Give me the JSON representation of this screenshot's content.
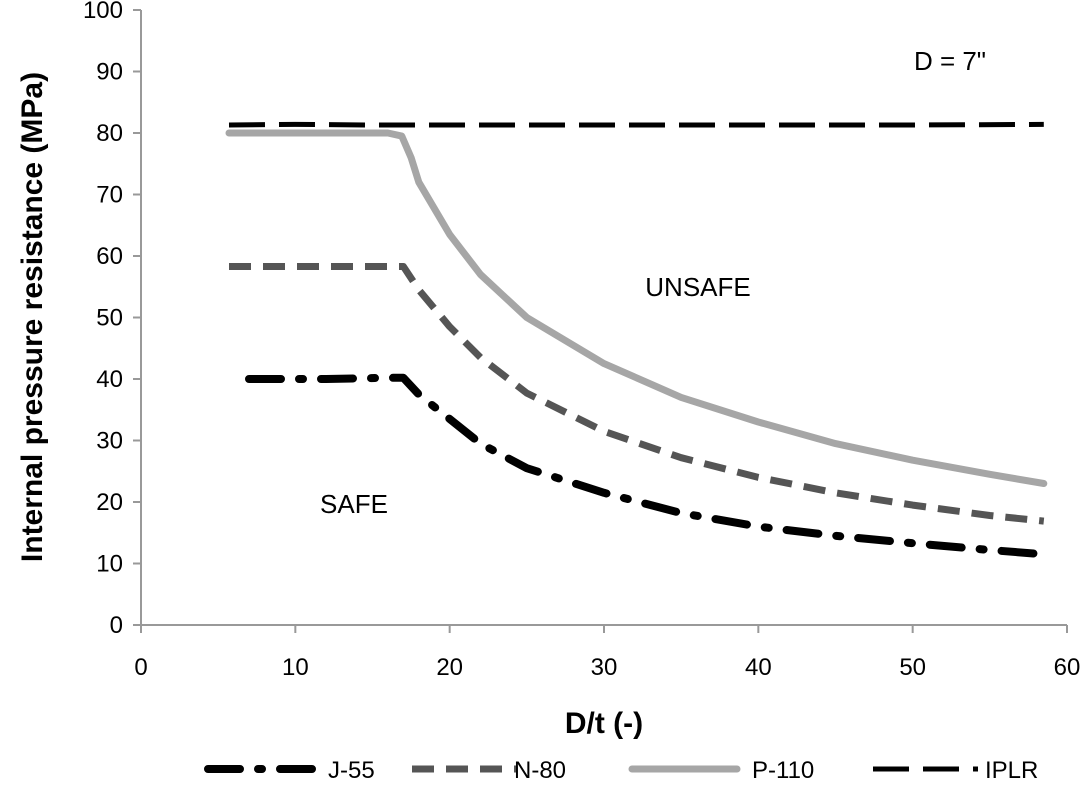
{
  "chart_data": {
    "type": "line",
    "title": "",
    "xlabel": "D/t (-)",
    "ylabel": "Internal pressure resistance (MPa)",
    "xlim": [
      0,
      60
    ],
    "ylim": [
      0,
      100
    ],
    "xticks": [
      0,
      10,
      20,
      30,
      40,
      50,
      60
    ],
    "yticks": [
      0,
      10,
      20,
      30,
      40,
      50,
      60,
      70,
      80,
      90,
      100
    ],
    "grid": false,
    "legend_position": "bottom",
    "annotations": [
      {
        "text": "D = 7\"",
        "x": 50,
        "y": 87
      },
      {
        "text": "UNSAFE",
        "x": 36.5,
        "y": 54
      },
      {
        "text": "SAFE",
        "x": 13.5,
        "y": 19
      }
    ],
    "series": [
      {
        "name": "J-55",
        "color": "#000000",
        "style": "dash-dot",
        "x": [
          7,
          10,
          12,
          14,
          16,
          17,
          18,
          20,
          22,
          25,
          30,
          35,
          40,
          45,
          50,
          55,
          58.5
        ],
        "y": [
          40,
          40,
          40,
          40.1,
          40.2,
          40.2,
          37.5,
          33.5,
          29.5,
          25.5,
          21.5,
          18.2,
          16,
          14.5,
          13.3,
          12.2,
          11.5
        ]
      },
      {
        "name": "N-80",
        "color": "#555555",
        "style": "dash",
        "x": [
          5.7,
          10,
          12,
          14,
          16,
          17,
          18,
          20,
          22,
          25,
          30,
          35,
          40,
          45,
          50,
          55,
          58.5
        ],
        "y": [
          58.3,
          58.3,
          58.3,
          58.3,
          58.3,
          58.3,
          54.5,
          48.5,
          43.5,
          37.7,
          31.5,
          27.2,
          24,
          21.5,
          19.5,
          17.8,
          16.9
        ]
      },
      {
        "name": "P-110",
        "color": "#a6a6a6",
        "style": "solid",
        "x": [
          5.7,
          10,
          12,
          14,
          16,
          16.9,
          17.5,
          18,
          20,
          22,
          25,
          30,
          35,
          40,
          45,
          50,
          55,
          58.5
        ],
        "y": [
          80,
          80,
          80,
          80,
          80,
          79.5,
          76,
          72,
          63.5,
          57,
          50,
          42.5,
          37,
          33,
          29.5,
          26.8,
          24.5,
          23
        ]
      },
      {
        "name": "IPLR",
        "color": "#000000",
        "style": "long-dash",
        "x": [
          5.7,
          10,
          15,
          20,
          30,
          40,
          50,
          58.5
        ],
        "y": [
          81.3,
          81.4,
          81.3,
          81.3,
          81.3,
          81.3,
          81.3,
          81.4
        ]
      }
    ]
  }
}
